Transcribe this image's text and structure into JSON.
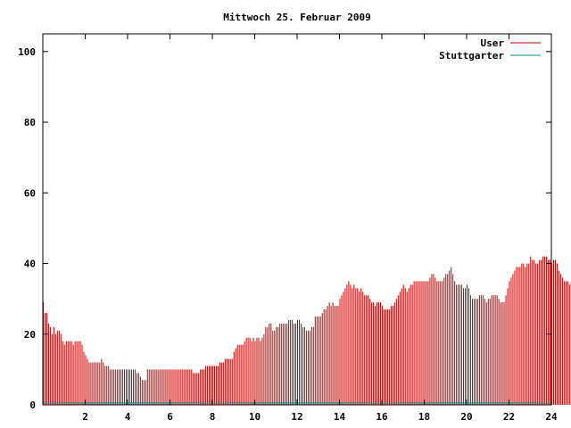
{
  "chart_data": {
    "type": "bar",
    "title": "Mittwoch 25. Februar 2009",
    "xlabel": "",
    "ylabel": "",
    "xlim": [
      0,
      24
    ],
    "ylim": [
      0,
      105
    ],
    "x_ticks": [
      2,
      4,
      6,
      8,
      10,
      12,
      14,
      16,
      18,
      20,
      22,
      24
    ],
    "y_ticks": [
      0,
      20,
      40,
      60,
      80,
      100
    ],
    "grid": false,
    "legend_position": "top-right",
    "series": [
      {
        "name": "User",
        "color": "#cc0000",
        "sample_interval_minutes": 5,
        "values": [
          29,
          26,
          26,
          23,
          22,
          20,
          22,
          20,
          21,
          21,
          20,
          18,
          17,
          18,
          18,
          18,
          18,
          17,
          18,
          18,
          18,
          18,
          17,
          15,
          14,
          13,
          12,
          12,
          12,
          12,
          12,
          12,
          12,
          13,
          12,
          11,
          11,
          11,
          10,
          10,
          10,
          10,
          10,
          10,
          10,
          10,
          10,
          10,
          10,
          10,
          10,
          10,
          10,
          9,
          9,
          8,
          7,
          7,
          7,
          10,
          10,
          10,
          10,
          10,
          10,
          10,
          10,
          10,
          10,
          10,
          10,
          10,
          10,
          10,
          10,
          10,
          10,
          10,
          10,
          10,
          10,
          10,
          10,
          10,
          10,
          9,
          9,
          9,
          9,
          10,
          10,
          10,
          11,
          11,
          11,
          11,
          11,
          11,
          11,
          11,
          12,
          12,
          12,
          13,
          13,
          13,
          13,
          13,
          15,
          16,
          17,
          17,
          17,
          17,
          18,
          19,
          19,
          19,
          18,
          19,
          18,
          19,
          19,
          18,
          19,
          20,
          22,
          22,
          23,
          23,
          21,
          21,
          22,
          22,
          23,
          23,
          23,
          23,
          23,
          24,
          24,
          24,
          23,
          23,
          24,
          24,
          23,
          22,
          22,
          21,
          21,
          21,
          22,
          22,
          25,
          25,
          25,
          25,
          26,
          27,
          27,
          28,
          29,
          28,
          29,
          28,
          28,
          28,
          30,
          31,
          32,
          33,
          34,
          35,
          34,
          33,
          34,
          33,
          33,
          32,
          33,
          32,
          31,
          31,
          31,
          30,
          29,
          29,
          28,
          29,
          29,
          29,
          28,
          27,
          27,
          27,
          27,
          28,
          28,
          29,
          30,
          31,
          32,
          33,
          34,
          33,
          32,
          33,
          34,
          34,
          35,
          35,
          35,
          35,
          35,
          35,
          35,
          35,
          35,
          36,
          37,
          37,
          36,
          35,
          35,
          35,
          35,
          36,
          37,
          37,
          38,
          39,
          37,
          35,
          34,
          34,
          34,
          34,
          33,
          33,
          34,
          33,
          31,
          30,
          30,
          30,
          30,
          31,
          31,
          31,
          30,
          29,
          30,
          30,
          31,
          31,
          31,
          31,
          30,
          29,
          29,
          29,
          31,
          33,
          35,
          36,
          37,
          38,
          39,
          39,
          39,
          40,
          40,
          39,
          40,
          40,
          42,
          41,
          41,
          40,
          40,
          41,
          41,
          42,
          42,
          42,
          41,
          41,
          40,
          41,
          41,
          40,
          38,
          37,
          36,
          35,
          35,
          35,
          34,
          35,
          34,
          34,
          33,
          32,
          32,
          31,
          30,
          29,
          28,
          28,
          28,
          27,
          27,
          27,
          27,
          27,
          30
        ]
      },
      {
        "name": "Stuttgarter",
        "color": "#008b8b",
        "constant_value": 0.5
      }
    ]
  }
}
